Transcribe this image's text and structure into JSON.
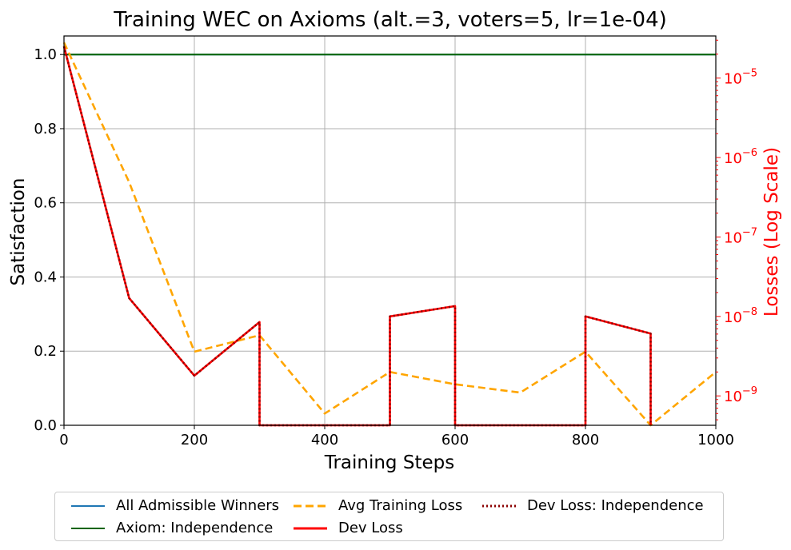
{
  "chart_data": {
    "type": "line",
    "title": "Training WEC on Axioms (alt.=3, voters=5, lr=1e-04)",
    "xlabel": "Training Steps",
    "ylabel": "Satisfaction",
    "y2label": "Losses (Log Scale)",
    "xlim": [
      0,
      1000
    ],
    "ylim": [
      0,
      1.05
    ],
    "y2scale": "log",
    "y2lim_exp": [
      -9.45,
      1.5
    ],
    "x_ticks": [
      "0",
      "200",
      "400",
      "600",
      "800",
      "1000"
    ],
    "y_ticks": [
      "0.0",
      "0.2",
      "0.4",
      "0.6",
      "0.8",
      "1.0"
    ],
    "y2_ticks": [
      "10",
      "10",
      "10",
      "10",
      "10"
    ],
    "y2_tick_exps": [
      "−9",
      "−8",
      "−7",
      "−6",
      "−5"
    ],
    "grid": true,
    "legend_position": "bottom-center, below plot",
    "colors": {
      "all_admissible": "#1f77b4",
      "independence": "#006400",
      "avg_train_loss": "#FFA500",
      "dev_loss": "#FF0000",
      "dev_loss_independence": "#8B0000",
      "right_axis": "#FF0000"
    },
    "series": [
      {
        "name": "All Admissible Winners",
        "axis": "left",
        "x": [
          0,
          1000
        ],
        "y": [
          1.0,
          1.0
        ]
      },
      {
        "name": "Axiom: Independence",
        "axis": "left",
        "x": [
          0,
          1000
        ],
        "y": [
          1.0,
          1.0
        ]
      },
      {
        "name": "Avg Training Loss",
        "axis": "right",
        "x": [
          0,
          100,
          200,
          300,
          400,
          500,
          600,
          700,
          800,
          900,
          1000
        ],
        "y": [
          2.8e-05,
          4.9e-07,
          3.6e-09,
          5.8e-09,
          6e-10,
          2e-09,
          1.4e-09,
          1.1e-09,
          3.6e-09,
          1e-12,
          2e-09
        ]
      },
      {
        "name": "Dev Loss",
        "axis": "right",
        "x": [
          0,
          100,
          200,
          300,
          300,
          500,
          500,
          600,
          600,
          800,
          800,
          900,
          900
        ],
        "y": [
          2.5e-05,
          1.7e-08,
          1.8e-09,
          8.5e-09,
          1e-12,
          1e-12,
          1e-08,
          1.35e-08,
          1e-12,
          1e-12,
          1e-08,
          6.1e-09,
          1e-12
        ]
      },
      {
        "name": "Dev Loss: Independence",
        "axis": "right",
        "x": [
          0,
          100,
          200,
          300,
          300,
          500,
          500,
          600,
          600,
          800,
          800,
          900,
          900
        ],
        "y": [
          2.5e-05,
          1.7e-08,
          1.8e-09,
          8.5e-09,
          1e-12,
          1e-12,
          1e-08,
          1.35e-08,
          1e-12,
          1e-12,
          1e-08,
          6.1e-09,
          1e-12
        ]
      }
    ]
  },
  "legend": {
    "items": [
      {
        "label": "All Admissible Winners"
      },
      {
        "label": "Axiom: Independence"
      },
      {
        "label": "Avg Training Loss"
      },
      {
        "label": "Dev Loss"
      },
      {
        "label": "Dev Loss: Independence"
      }
    ]
  }
}
